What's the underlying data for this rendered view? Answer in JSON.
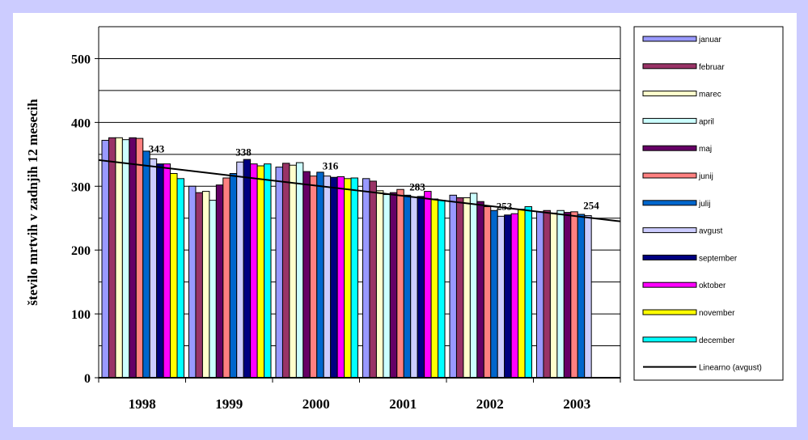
{
  "chart_data": {
    "type": "bar",
    "y_label": "število mrtvih v zadnjih 12 mesecih",
    "categories": [
      "1998",
      "1999",
      "2000",
      "2001",
      "2002",
      "2003"
    ],
    "ylim": [
      0,
      550
    ],
    "yticks": [
      0,
      100,
      200,
      300,
      400,
      500
    ],
    "minor_yticks": [
      50,
      150,
      250,
      350,
      450,
      550
    ],
    "grid": true,
    "series": [
      {
        "name": "januar",
        "color": "#9999ff",
        "values": [
          372,
          300,
          330,
          312,
          286,
          260
        ]
      },
      {
        "name": "februar",
        "color": "#993366",
        "values": [
          376,
          290,
          336,
          308,
          282,
          262
        ]
      },
      {
        "name": "marec",
        "color": "#ffffcc",
        "values": [
          376,
          292,
          333,
          293,
          282,
          258
        ]
      },
      {
        "name": "april",
        "color": "#ccffff",
        "values": [
          373,
          278,
          337,
          287,
          289,
          262
        ]
      },
      {
        "name": "maj",
        "color": "#660066",
        "values": [
          376,
          302,
          323,
          290,
          276,
          259
        ]
      },
      {
        "name": "junij",
        "color": "#ff8080",
        "values": [
          375,
          313,
          316,
          295,
          268,
          260
        ]
      },
      {
        "name": "julij",
        "color": "#0066cc",
        "values": [
          355,
          320,
          322,
          286,
          262,
          256
        ]
      },
      {
        "name": "avgust",
        "color": "#ccccff",
        "values": [
          343,
          338,
          316,
          283,
          253,
          254
        ],
        "data_labels": true
      },
      {
        "name": "september",
        "color": "#000080",
        "values": [
          335,
          342,
          314,
          284,
          255,
          null
        ]
      },
      {
        "name": "oktober",
        "color": "#ff00ff",
        "values": [
          335,
          335,
          315,
          292,
          257,
          null
        ]
      },
      {
        "name": "november",
        "color": "#ffff00",
        "values": [
          320,
          332,
          312,
          280,
          264,
          null
        ]
      },
      {
        "name": "december",
        "color": "#00ffff",
        "values": [
          312,
          335,
          313,
          278,
          268,
          null
        ]
      }
    ],
    "trendline": {
      "name": "Linearno (avgust)",
      "color": "#000000",
      "values": [
        341,
        245
      ]
    }
  }
}
